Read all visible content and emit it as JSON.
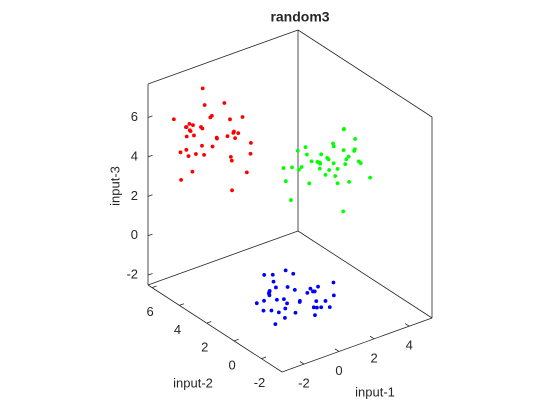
{
  "chart_data": {
    "type": "scatter3d",
    "title": "random3",
    "xlabel": "input-1",
    "ylabel": "input-2",
    "zlabel": "input-3",
    "xlim": [
      -3.25,
      5.3
    ],
    "ylim": [
      -3.5,
      6.3
    ],
    "zlim": [
      -2.5,
      7.7
    ],
    "xticks": [
      -2,
      0,
      2,
      4
    ],
    "yticks": [
      -2,
      0,
      2,
      4,
      6
    ],
    "zticks": [
      -2,
      0,
      2,
      4,
      6
    ],
    "series": [
      {
        "color": "#ff0000",
        "x": [
          -1.8,
          -0.5,
          -2.4,
          -1.1,
          0.1,
          -3.0,
          -1.4,
          -0.2,
          -2.0,
          -0.8,
          -2.3,
          0.5,
          -1.2,
          -0.6,
          -2.8,
          -1.5,
          -0.1,
          -1.7,
          -0.9,
          -2.1,
          0.2,
          -1.3,
          -0.4,
          -2.5,
          -1.0,
          -1.6,
          0.8,
          -0.7,
          -2.9,
          -1.9,
          -0.3,
          -1.1,
          -2.2,
          -0.5,
          -1.4,
          0.0,
          -0.8,
          -2.0,
          -1.2,
          -0.6
        ],
        "y": [
          4.8,
          3.7,
          5.5,
          3.0,
          4.6,
          4.2,
          5.9,
          3.3,
          5.1,
          4.4,
          2.8,
          5.3,
          3.9,
          5.7,
          4.5,
          2.4,
          4.1,
          5.0,
          6.2,
          3.8,
          3.2,
          4.7,
          5.4,
          4.3,
          2.9,
          5.6,
          4.0,
          4.9,
          3.5,
          5.2,
          4.5,
          6.0,
          3.7,
          2.6,
          4.8,
          4.1,
          5.3,
          4.4,
          5.9,
          3.1
        ],
        "z": [
          5.3,
          4.1,
          6.0,
          4.8,
          5.6,
          3.7,
          5.1,
          6.4,
          4.5,
          5.0,
          5.8,
          4.3,
          5.4,
          6.9,
          4.9,
          3.5,
          5.2,
          5.7,
          4.6,
          6.2,
          5.0,
          4.2,
          5.5,
          4.7,
          6.1,
          5.3,
          3.9,
          5.9,
          4.4,
          5.1,
          6.6,
          4.8,
          5.4,
          4.0,
          5.6,
          4.9,
          6.3,
          4.6,
          5.2,
          5.8
        ]
      },
      {
        "color": "#00ff00",
        "x": [
          2.2,
          3.5,
          1.6,
          2.9,
          4.1,
          1.0,
          2.6,
          3.8,
          2.0,
          3.2,
          1.7,
          4.5,
          2.8,
          3.4,
          1.2,
          2.5,
          3.9,
          2.3,
          3.1,
          1.9,
          4.2,
          2.7,
          3.6,
          1.5,
          3.0,
          2.4,
          4.8,
          3.3,
          1.1,
          2.1,
          3.7,
          2.9,
          1.8,
          3.5,
          2.6,
          4.0,
          3.2,
          2.0,
          2.8,
          3.4
        ],
        "y": [
          -0.4,
          3.0,
          0.9,
          1.8,
          0.6,
          1.3,
          -0.9,
          0.2,
          2.5,
          1.0,
          1.7,
          0.0,
          1.4,
          0.5,
          2.1,
          -0.6,
          0.8,
          1.9,
          1.2,
          -0.3,
          0.3,
          2.7,
          1.5,
          0.6,
          -1.1,
          1.0,
          2.2,
          0.4,
          1.8,
          -0.7,
          0.9,
          1.6,
          -0.2,
          2.4,
          0.7,
          1.1,
          -0.5,
          2.0,
          0.2,
          1.3
        ],
        "z": [
          4.3,
          3.1,
          5.0,
          3.8,
          4.6,
          2.7,
          4.1,
          5.4,
          3.5,
          4.0,
          4.8,
          3.3,
          4.4,
          5.9,
          3.9,
          2.5,
          4.2,
          4.7,
          3.6,
          5.2,
          4.0,
          3.2,
          4.5,
          3.7,
          5.1,
          4.3,
          2.9,
          4.9,
          3.4,
          4.1,
          5.6,
          3.8,
          4.4,
          3.0,
          4.6,
          3.9,
          5.3,
          3.6,
          4.2,
          4.8
        ]
      },
      {
        "color": "#0000ff",
        "x": [
          0.2,
          1.5,
          -0.4,
          0.9,
          2.1,
          -1.0,
          0.6,
          1.8,
          0.0,
          1.2,
          -0.3,
          2.5,
          0.8,
          1.4,
          -0.8,
          0.5,
          1.9,
          0.3,
          1.1,
          -0.1,
          2.2,
          0.7,
          1.6,
          -0.5,
          1.0,
          0.4,
          2.8,
          1.3,
          -0.9,
          0.1,
          1.7,
          0.9,
          -0.2,
          1.5,
          0.6,
          2.0,
          1.2,
          0.0,
          0.8,
          1.4
        ],
        "y": [
          1.3,
          0.2,
          2.0,
          -0.5,
          1.1,
          0.7,
          2.4,
          -0.2,
          1.6,
          0.9,
          -0.7,
          1.8,
          0.4,
          2.2,
          1.0,
          -1.1,
          0.6,
          1.5,
          2.7,
          0.3,
          -0.3,
          1.2,
          1.9,
          0.8,
          -0.6,
          2.1,
          0.5,
          1.4,
          0.0,
          1.7,
          1.0,
          2.5,
          0.2,
          -0.9,
          1.3,
          0.6,
          1.8,
          0.9,
          3.0,
          -0.4
        ],
        "z": [
          -2.1,
          -1.6,
          -2.4,
          -1.9,
          -2.2,
          -1.5,
          -2.4,
          -2.0,
          -1.8,
          -2.3,
          -1.7,
          -2.5,
          -2.0,
          -1.4,
          -2.2,
          -1.9,
          -2.4,
          -1.6,
          -2.1,
          -2.0,
          -1.8,
          -2.4,
          -1.5,
          -2.2,
          -1.9,
          -2.3,
          -1.7,
          -2.0,
          -2.4,
          -1.8,
          -2.1,
          -1.6,
          -2.4,
          -1.9,
          -2.2,
          -1.7,
          -2.0,
          -2.5,
          -1.8,
          -2.1
        ]
      }
    ]
  }
}
